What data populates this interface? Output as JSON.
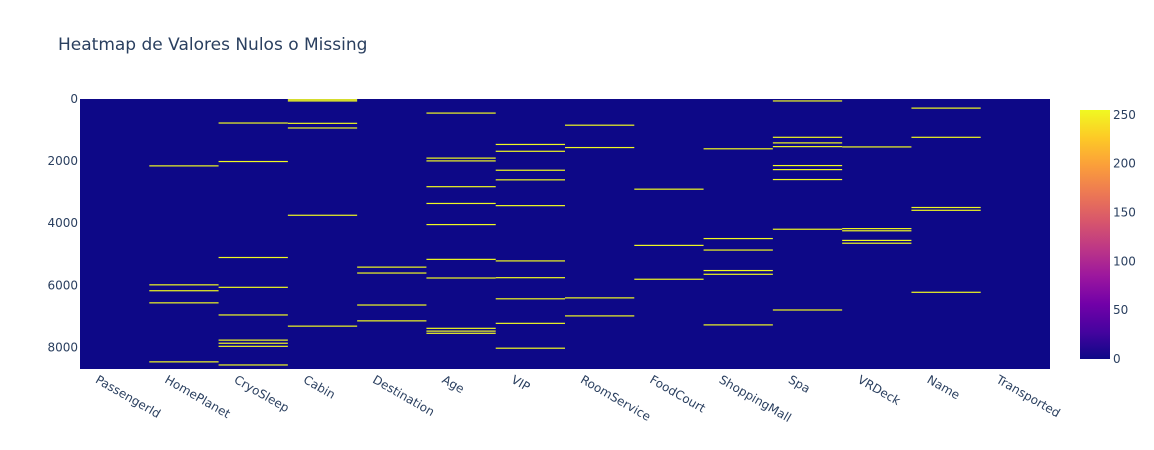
{
  "chart_data": {
    "type": "heatmap",
    "title": "Heatmap de Valores Nulos o Missing",
    "xlabel": "",
    "ylabel": "",
    "categories": [
      "PassengerId",
      "HomePlanet",
      "CryoSleep",
      "Cabin",
      "Destination",
      "Age",
      "VIP",
      "RoomService",
      "FoodCourt",
      "ShoppingMall",
      "Spa",
      "VRDeck",
      "Name",
      "Transported"
    ],
    "y_range": [
      0,
      8693
    ],
    "y_reversed": true,
    "y_ticks": [
      0,
      2000,
      4000,
      6000,
      8000
    ],
    "colorscale": {
      "min": 0,
      "max": 255,
      "ticks": [
        0,
        50,
        100,
        150,
        200,
        250
      ],
      "colors": [
        "#0d0887",
        "#46039f",
        "#7201a8",
        "#9c179e",
        "#bd3786",
        "#d8576b",
        "#ed7953",
        "#fb9f3a",
        "#fdca26",
        "#f0f921"
      ]
    },
    "background_value": 0,
    "highlight_value": 255,
    "missing_rows": {
      "PassengerId": [],
      "HomePlanet": [
        2150,
        5980,
        6170,
        6560,
        8460
      ],
      "CryoSleep": [
        770,
        2010,
        5100,
        6060,
        6950,
        7760,
        7860,
        7960,
        8560
      ],
      "Cabin": [
        20,
        60,
        780,
        930,
        3740,
        7310
      ],
      "Destination": [
        5410,
        5600,
        6630,
        7140
      ],
      "Age": [
        450,
        1900,
        1990,
        2820,
        3360,
        4040,
        5160,
        5760,
        7380,
        7470,
        7540
      ],
      "VIP": [
        1460,
        1680,
        2290,
        2600,
        3430,
        5210,
        5750,
        6430,
        7220,
        8020
      ],
      "RoomService": [
        840,
        1560,
        6400,
        6980
      ],
      "FoodCourt": [
        2900,
        4710,
        5800
      ],
      "ShoppingMall": [
        1600,
        4490,
        4860,
        5520,
        5640,
        7270
      ],
      "Spa": [
        60,
        1230,
        1410,
        1530,
        2140,
        2270,
        2590,
        4190,
        6790
      ],
      "VRDeck": [
        1540,
        4170,
        4240,
        4550,
        4640
      ],
      "Name": [
        290,
        1230,
        3490,
        3580,
        6220
      ],
      "Transported": []
    }
  }
}
